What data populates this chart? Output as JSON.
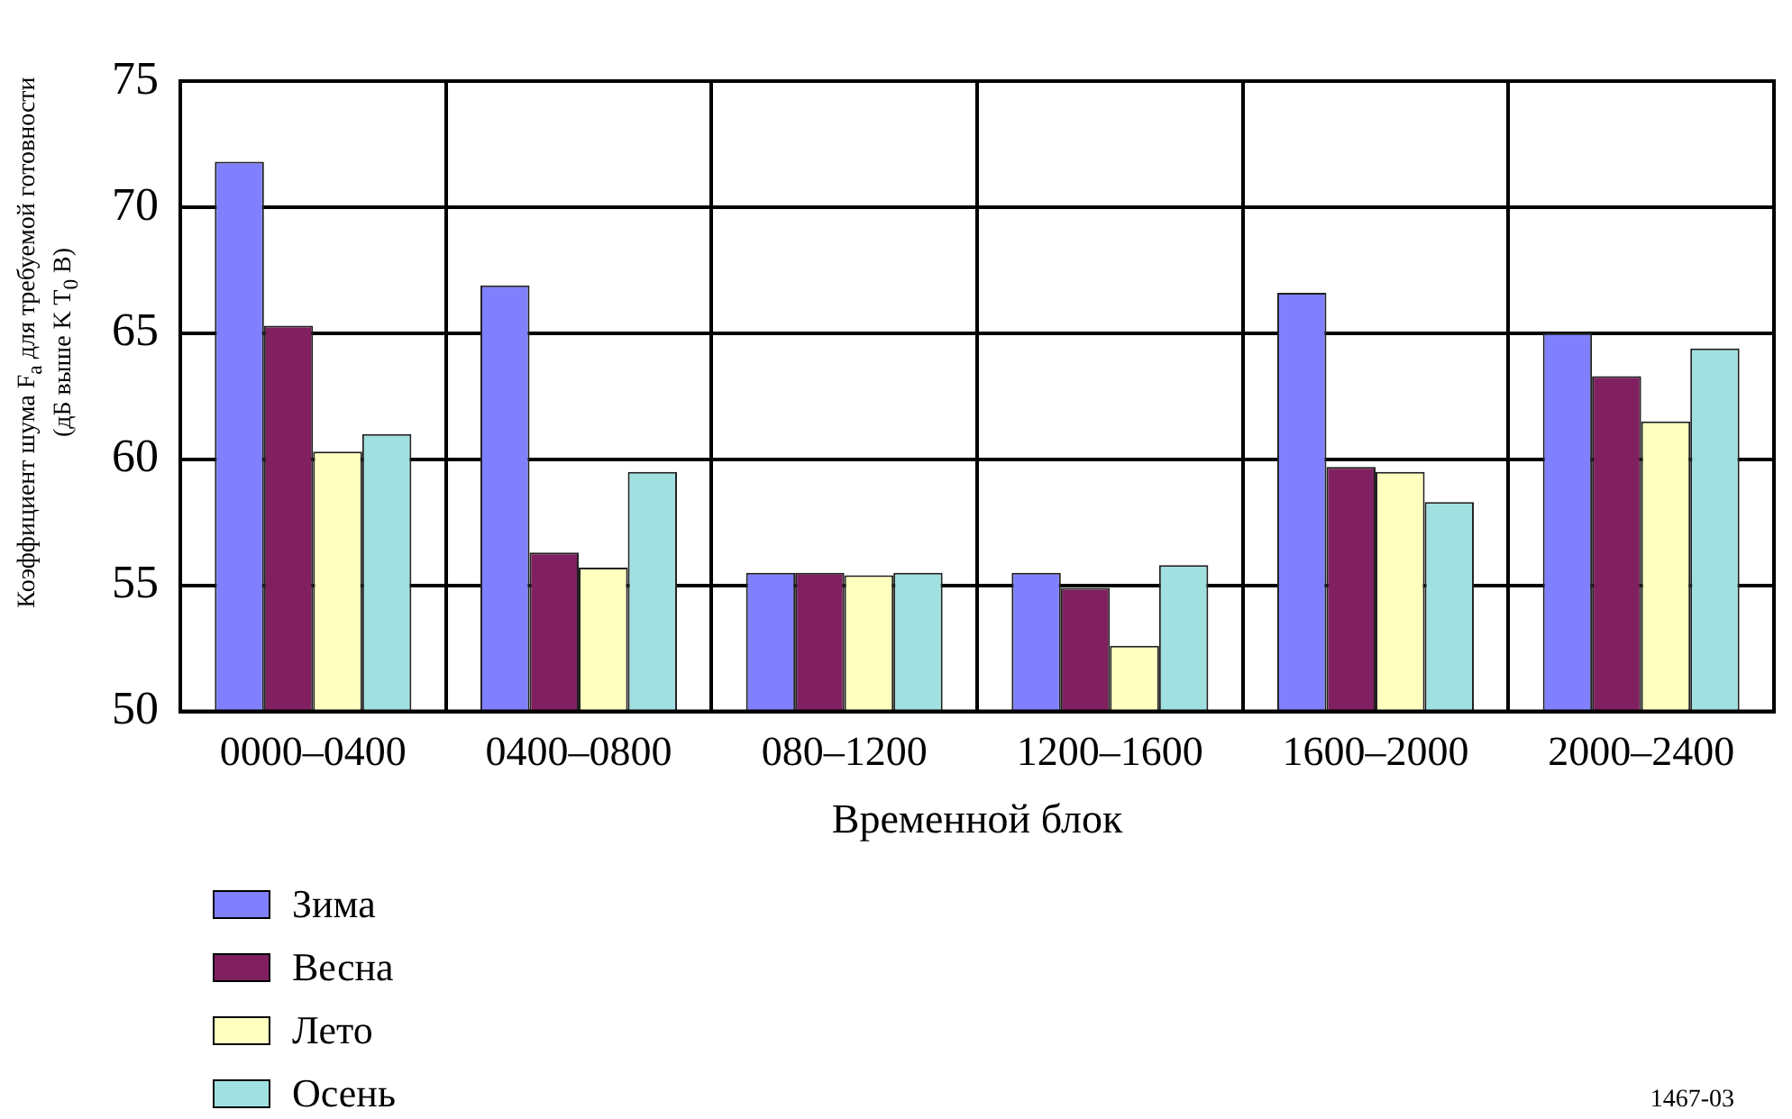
{
  "chart_data": {
    "type": "bar",
    "xlabel": "Временной блок",
    "ylabel": "Коэффициент шума F$_{a}$ для требуемой готовности\n(дБ выше K T$_{0}$ B)",
    "categories": [
      "0000–0400",
      "0400–0800",
      "080–1200",
      "1200–1600",
      "1600–2000",
      "2000–2400"
    ],
    "series": [
      {
        "name": "Зима",
        "color": "#8080ff",
        "values": [
          71.8,
          66.9,
          55.5,
          55.5,
          66.6,
          65.0
        ]
      },
      {
        "name": "Весна",
        "color": "#802060",
        "values": [
          65.3,
          56.3,
          55.5,
          54.9,
          59.7,
          63.3
        ]
      },
      {
        "name": "Лето",
        "color": "#ffffc0",
        "values": [
          60.3,
          55.7,
          55.4,
          52.6,
          59.5,
          61.5
        ]
      },
      {
        "name": "Осень",
        "color": "#a0e0e0",
        "values": [
          61.0,
          59.5,
          55.5,
          55.8,
          58.3,
          64.4
        ]
      }
    ],
    "ylim": [
      50,
      75
    ],
    "yticks": [
      50,
      55,
      60,
      65,
      70,
      75
    ],
    "grid": true,
    "legend": "bottom left",
    "annotations": [
      "1467-03"
    ]
  }
}
